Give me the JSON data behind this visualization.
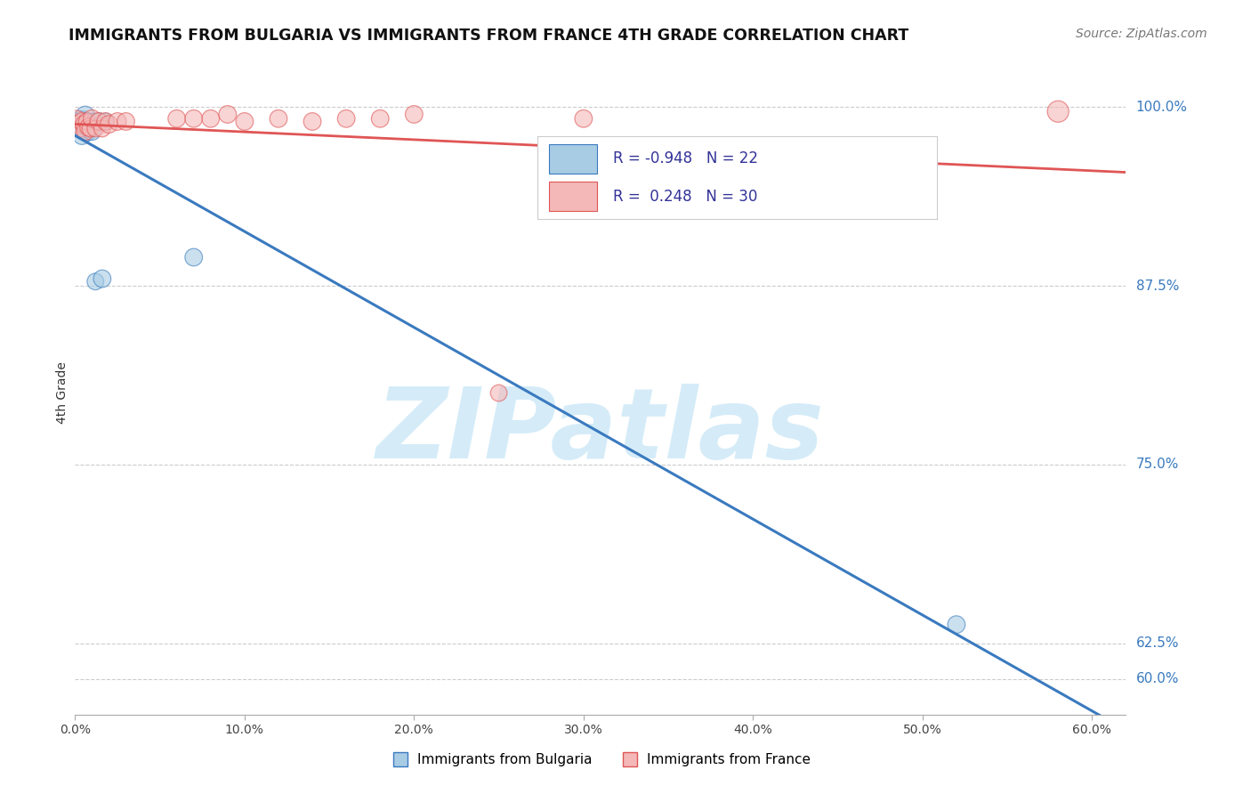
{
  "title": "IMMIGRANTS FROM BULGARIA VS IMMIGRANTS FROM FRANCE 4TH GRADE CORRELATION CHART",
  "source": "Source: ZipAtlas.com",
  "ylabel": "4th Grade",
  "ytick_labels": [
    "60.0%",
    "62.5%",
    "75.0%",
    "87.5%",
    "100.0%"
  ],
  "ytick_vals": [
    0.6,
    0.625,
    0.75,
    0.875,
    1.0
  ],
  "xtick_vals": [
    0.0,
    0.1,
    0.2,
    0.3,
    0.4,
    0.5,
    0.6
  ],
  "xmin": 0.0,
  "xmax": 0.62,
  "ymin": 0.575,
  "ymax": 1.025,
  "bulgaria_R": -0.948,
  "bulgaria_N": 22,
  "france_R": 0.248,
  "france_N": 30,
  "bulgaria_color": "#a8cce4",
  "france_color": "#f4b8b8",
  "bulgaria_line_color": "#3a7abf",
  "france_line_color": "#e05555",
  "watermark": "ZIPatlas",
  "watermark_color": "#d5ecf8",
  "bulgaria_x": [
    0.001,
    0.002,
    0.003,
    0.003,
    0.004,
    0.004,
    0.005,
    0.005,
    0.006,
    0.006,
    0.007,
    0.007,
    0.008,
    0.009,
    0.01,
    0.011,
    0.012,
    0.014,
    0.016,
    0.018,
    0.07,
    0.52
  ],
  "bulgaria_y": [
    0.99,
    0.988,
    0.985,
    0.992,
    0.987,
    0.98,
    0.99,
    0.983,
    0.988,
    0.994,
    0.982,
    0.99,
    0.985,
    0.988,
    0.983,
    0.99,
    0.878,
    0.99,
    0.88,
    0.99,
    0.895,
    0.638
  ],
  "bulgaria_sizes": [
    200,
    220,
    180,
    160,
    250,
    200,
    280,
    180,
    200,
    240,
    180,
    200,
    220,
    180,
    200,
    180,
    180,
    200,
    200,
    180,
    200,
    200
  ],
  "france_x": [
    0.001,
    0.002,
    0.003,
    0.004,
    0.005,
    0.006,
    0.007,
    0.008,
    0.009,
    0.01,
    0.012,
    0.014,
    0.016,
    0.018,
    0.02,
    0.025,
    0.03,
    0.06,
    0.07,
    0.08,
    0.09,
    0.1,
    0.12,
    0.14,
    0.16,
    0.18,
    0.2,
    0.25,
    0.3,
    0.58
  ],
  "france_y": [
    0.992,
    0.988,
    0.985,
    0.99,
    0.988,
    0.983,
    0.99,
    0.986,
    0.985,
    0.992,
    0.985,
    0.99,
    0.985,
    0.99,
    0.988,
    0.99,
    0.99,
    0.992,
    0.992,
    0.992,
    0.995,
    0.99,
    0.992,
    0.99,
    0.992,
    0.992,
    0.995,
    0.8,
    0.992,
    0.997
  ],
  "france_sizes": [
    180,
    200,
    180,
    200,
    180,
    200,
    180,
    200,
    180,
    200,
    180,
    200,
    180,
    200,
    200,
    200,
    200,
    200,
    200,
    200,
    200,
    200,
    200,
    200,
    200,
    200,
    200,
    180,
    200,
    300
  ],
  "grid_color": "#cccccc",
  "background_color": "#ffffff"
}
